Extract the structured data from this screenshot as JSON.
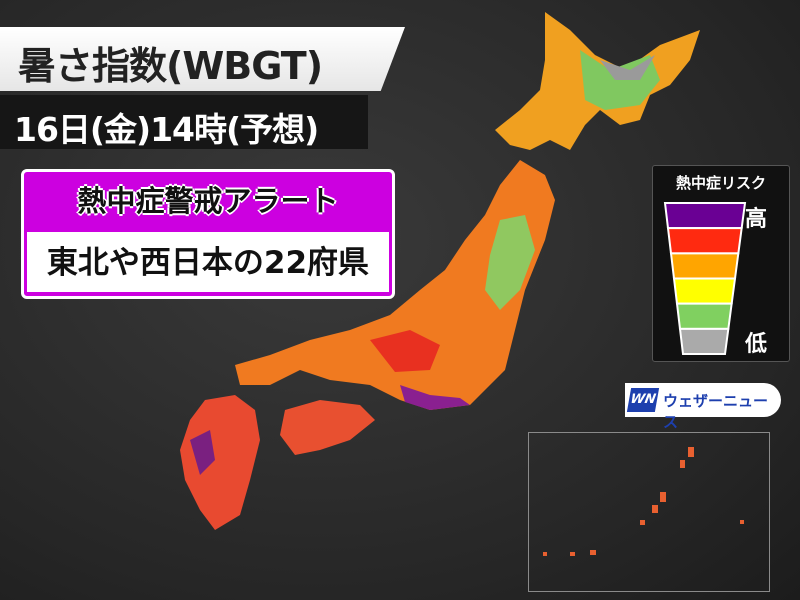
{
  "header": {
    "title": "暑さ指数(WBGT)",
    "datetime": "16日(金)14時(予想)"
  },
  "alert": {
    "heading": "熱中症警戒アラート",
    "message": "東北や西日本の22府県",
    "color": "#cc00e0"
  },
  "legend": {
    "title": "熱中症リスク",
    "high_label": "高",
    "low_label": "低",
    "levels": [
      "#6a0094",
      "#ff2a10",
      "#ffa500",
      "#ffff00",
      "#80d060",
      "#aaaaaa"
    ]
  },
  "brand": {
    "logo_mark": "WN",
    "name": "ウェザーニュース",
    "color": "#1d3fae"
  }
}
